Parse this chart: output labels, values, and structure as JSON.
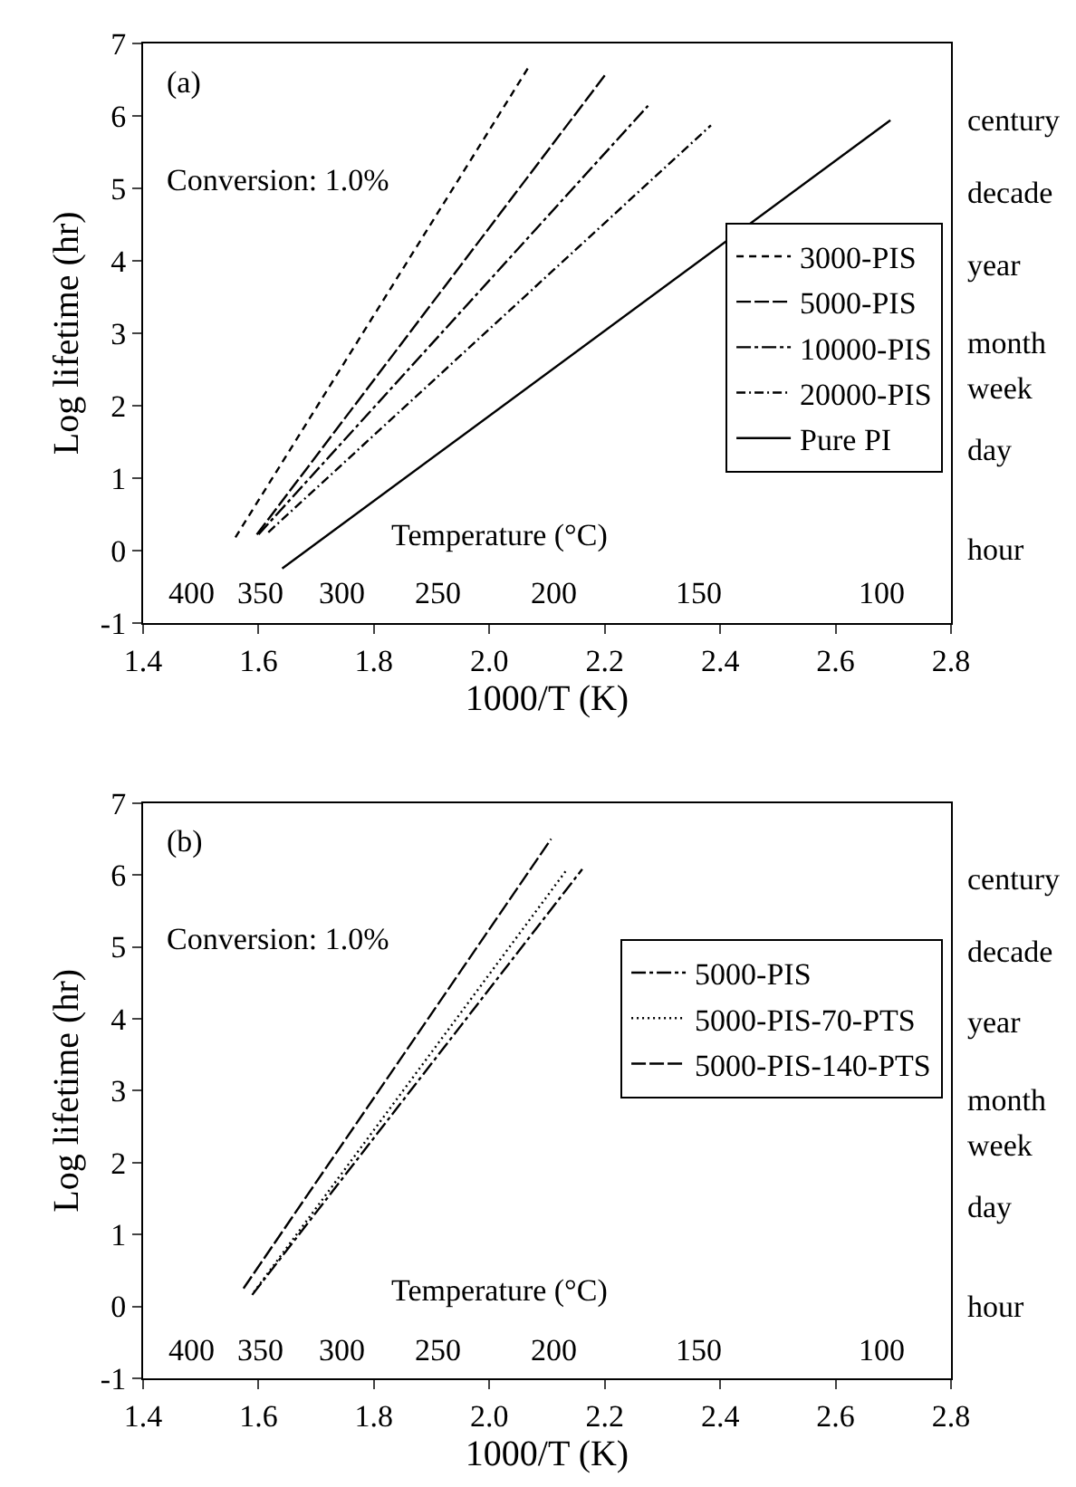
{
  "chart_data": [
    {
      "type": "line",
      "xlabel": "1000/T (K)",
      "ylabel": "Log lifetime (hr)",
      "legend": "right",
      "annotations": [
        "(a)",
        "Conversion: 1.0%",
        "Temperature (°C)",
        "400",
        "350",
        "300",
        "250",
        "200",
        "150",
        "100",
        "hour",
        "day",
        "week",
        "month",
        "year",
        "decade",
        "century"
      ],
      "xlim": [
        1.4,
        2.8
      ],
      "xticks": [
        {
          "value": 1.4,
          "label": "1.4"
        },
        {
          "value": 1.6,
          "label": "1.6"
        },
        {
          "value": 1.8,
          "label": "1.8"
        },
        {
          "value": 2.0,
          "label": "2.0"
        },
        {
          "value": 2.2,
          "label": "2.2"
        },
        {
          "value": 2.4,
          "label": "2.4"
        },
        {
          "value": 2.6,
          "label": "2.6"
        },
        {
          "value": 2.8,
          "label": "2.8"
        }
      ],
      "ylim": [
        -1,
        7
      ],
      "yticks": [
        -1,
        0,
        1,
        2,
        3,
        4,
        5,
        6,
        7
      ],
      "series": [
        {
          "name": "3000-PIS",
          "color": "#000000",
          "line_style": "dashed",
          "x": [
            1.56,
            2.067
          ],
          "values": [
            0.18,
            6.66
          ]
        },
        {
          "name": "5000-PIS",
          "color": "#000000",
          "line_style": "longdash",
          "x": [
            1.597,
            2.203
          ],
          "values": [
            0.22,
            6.59
          ]
        },
        {
          "name": "10000-PIS",
          "color": "#000000",
          "line_style": "longdashdot",
          "x": [
            1.6,
            2.275
          ],
          "values": [
            0.22,
            6.14
          ]
        },
        {
          "name": "20000-PIS",
          "color": "#000000",
          "line_style": "dashdot",
          "x": [
            1.617,
            2.384
          ],
          "values": [
            0.25,
            5.87
          ]
        },
        {
          "name": "Pure PI",
          "color": "#000000",
          "line_style": "solid",
          "x": [
            1.641,
            2.695
          ],
          "values": [
            -0.25,
            5.94
          ]
        }
      ]
    },
    {
      "type": "line",
      "xlabel": "1000/T (K)",
      "ylabel": "Log lifetime (hr)",
      "legend": "right",
      "annotations": [
        "(b)",
        "Conversion: 1.0%",
        "Temperature (°C)",
        "400",
        "350",
        "300",
        "250",
        "200",
        "150",
        "100",
        "hour",
        "day",
        "week",
        "month",
        "year",
        "decade",
        "century"
      ],
      "xlim": [
        1.4,
        2.8
      ],
      "xticks": [
        {
          "value": 1.4,
          "label": "1.4"
        },
        {
          "value": 1.6,
          "label": "1.6"
        },
        {
          "value": 1.8,
          "label": "1.8"
        },
        {
          "value": 2.0,
          "label": "2.0"
        },
        {
          "value": 2.2,
          "label": "2.2"
        },
        {
          "value": 2.4,
          "label": "2.4"
        },
        {
          "value": 2.6,
          "label": "2.6"
        },
        {
          "value": 2.8,
          "label": "2.8"
        }
      ],
      "ylim": [
        -1,
        7
      ],
      "yticks": [
        -1,
        0,
        1,
        2,
        3,
        4,
        5,
        6,
        7
      ],
      "series": [
        {
          "name": "5000-PIS",
          "color": "#000000",
          "line_style": "longdashdot",
          "x": [
            1.589,
            2.161
          ],
          "values": [
            0.16,
            6.08
          ]
        },
        {
          "name": "5000-PIS-70-PTS",
          "color": "#000000",
          "line_style": "dotted",
          "x": [
            1.592,
            2.133
          ],
          "values": [
            0.2,
            6.06
          ]
        },
        {
          "name": "5000-PIS-140-PTS",
          "color": "#000000",
          "line_style": "longdash",
          "x": [
            1.574,
            2.107
          ],
          "values": [
            0.25,
            6.5
          ]
        }
      ]
    }
  ]
}
